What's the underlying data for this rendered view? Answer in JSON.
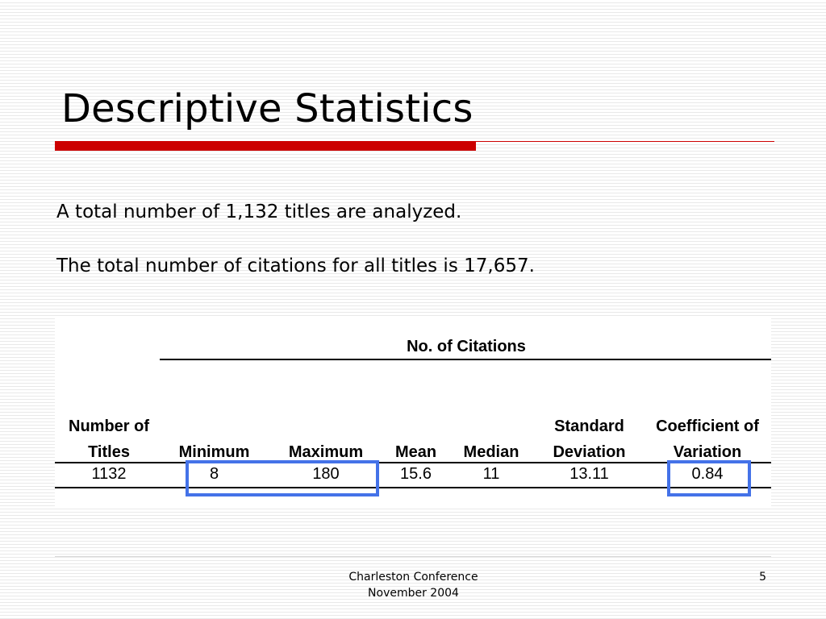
{
  "slide": {
    "title": "Descriptive Statistics",
    "lines": [
      "A total number of 1,132 titles are analyzed.",
      "The total number of citations for all titles is 17,657."
    ]
  },
  "table": {
    "group_header": "No. of Citations",
    "headers": [
      [
        "Number of",
        "Titles"
      ],
      [
        "",
        "Minimum"
      ],
      [
        "",
        "Maximum"
      ],
      [
        "",
        "Mean"
      ],
      [
        "",
        "Median"
      ],
      [
        "Standard",
        "Deviation"
      ],
      [
        "Coefficient of",
        "Variation"
      ]
    ],
    "values": [
      "1132",
      "8",
      "180",
      "15.6",
      "11",
      "13.11",
      "0.84"
    ],
    "highlight_color": "#4472e8"
  },
  "footer": {
    "line1": "Charleston Conference",
    "line2": "November 2004",
    "page_number": "5"
  }
}
